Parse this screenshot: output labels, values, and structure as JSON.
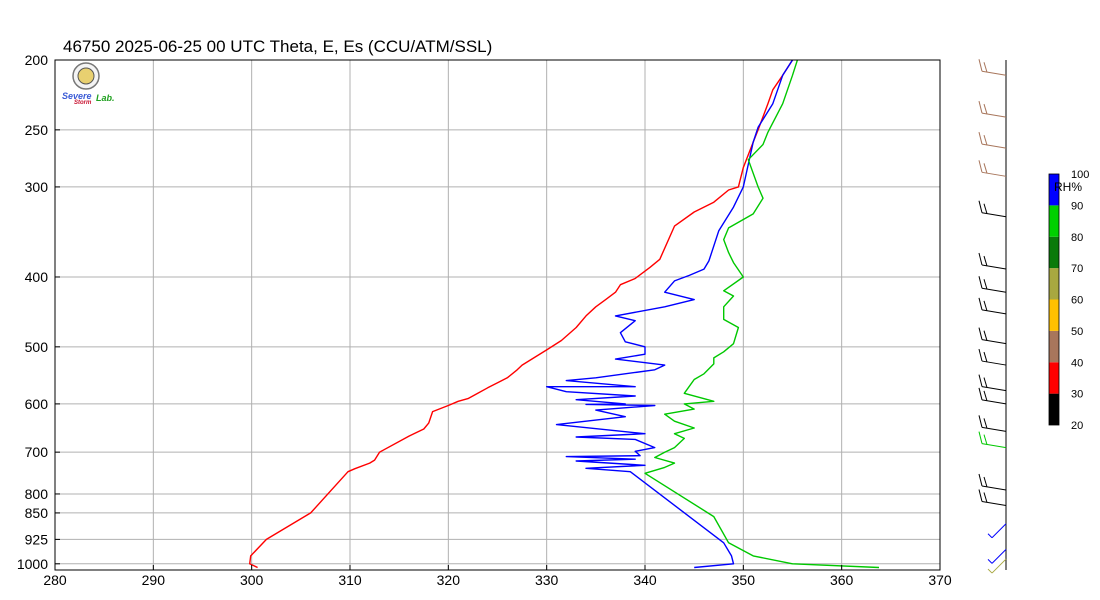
{
  "title": "46750  2025-06-25 00 UTC  Theta, E, Es (CCU/ATM/SSL)",
  "logo": {
    "name": "Severe Storm Lab",
    "word1": "Severe",
    "word2": "Storm",
    "word3": "Lab."
  },
  "chart_data": {
    "type": "line",
    "title": "46750  2025-06-25 00 UTC  Theta, E, Es (CCU/ATM/SSL)",
    "xlabel": "",
    "ylabel": "",
    "xlim": [
      280,
      370
    ],
    "ylim": [
      1020,
      200
    ],
    "yscale": "log",
    "grid": true,
    "x_ticks": [
      "280",
      "290",
      "300",
      "310",
      "320",
      "330",
      "340",
      "350",
      "360",
      "370"
    ],
    "y_ticks": [
      "200",
      "250",
      "300",
      "400",
      "500",
      "600",
      "700",
      "800",
      "850",
      "925",
      "1000"
    ],
    "x_tick_values": [
      280,
      290,
      300,
      310,
      320,
      330,
      340,
      350,
      360,
      370
    ],
    "y_tick_values": [
      200,
      250,
      300,
      400,
      500,
      600,
      700,
      800,
      850,
      925,
      1000
    ],
    "series": [
      {
        "color": "#ff0000",
        "points": [
          [
            300.6,
            1012
          ],
          [
            299.8,
            1000
          ],
          [
            299.9,
            975
          ],
          [
            301.5,
            925
          ],
          [
            306,
            850
          ],
          [
            309.8,
            745
          ],
          [
            310.5,
            738
          ],
          [
            312,
            725
          ],
          [
            312.5,
            718
          ],
          [
            313,
            700
          ],
          [
            316,
            665
          ],
          [
            316.5,
            660
          ],
          [
            317.5,
            650
          ],
          [
            318,
            638
          ],
          [
            318.4,
            615
          ],
          [
            320,
            603
          ],
          [
            321,
            595
          ],
          [
            322,
            590
          ],
          [
            323,
            580
          ],
          [
            324,
            570
          ],
          [
            326,
            552
          ],
          [
            327,
            538
          ],
          [
            327.5,
            530
          ],
          [
            330,
            505
          ],
          [
            331.5,
            490
          ],
          [
            333,
            470
          ],
          [
            334,
            453
          ],
          [
            335,
            440
          ],
          [
            336,
            430
          ],
          [
            337,
            420
          ],
          [
            337.5,
            410
          ],
          [
            339,
            402
          ],
          [
            340.5,
            388
          ],
          [
            341.5,
            378
          ],
          [
            343,
            340
          ],
          [
            345,
            325
          ],
          [
            347,
            315
          ],
          [
            348.5,
            303
          ],
          [
            349.5,
            300
          ],
          [
            350,
            282
          ],
          [
            351,
            260
          ],
          [
            351.5,
            250
          ],
          [
            352.5,
            230
          ],
          [
            353,
            220
          ],
          [
            354,
            210
          ],
          [
            355,
            200
          ]
        ]
      },
      {
        "color": "#0000ff",
        "points": [
          [
            345,
            1012
          ],
          [
            349,
            1000
          ],
          [
            348.8,
            975
          ],
          [
            348,
            935
          ],
          [
            338.5,
            745
          ],
          [
            334,
            737
          ],
          [
            340,
            730
          ],
          [
            333,
            720
          ],
          [
            339,
            716
          ],
          [
            332,
            710
          ],
          [
            339.5,
            708
          ],
          [
            339,
            698
          ],
          [
            341,
            690
          ],
          [
            339,
            672
          ],
          [
            333,
            667
          ],
          [
            340,
            660
          ],
          [
            331,
            641
          ],
          [
            338,
            625
          ],
          [
            335,
            612
          ],
          [
            341,
            603
          ],
          [
            334,
            601
          ],
          [
            338,
            600
          ],
          [
            333,
            592
          ],
          [
            339,
            585
          ],
          [
            332,
            577
          ],
          [
            330,
            568
          ],
          [
            339,
            568
          ],
          [
            332,
            557
          ],
          [
            335,
            552
          ],
          [
            341,
            538
          ],
          [
            342,
            530
          ],
          [
            337,
            520
          ],
          [
            340,
            512
          ],
          [
            340,
            500
          ],
          [
            338,
            492
          ],
          [
            337.5,
            478
          ],
          [
            339,
            460
          ],
          [
            337,
            453
          ],
          [
            342,
            440
          ],
          [
            345,
            430
          ],
          [
            342,
            420
          ],
          [
            343,
            405
          ],
          [
            344.5,
            398
          ],
          [
            346,
            390
          ],
          [
            346.5,
            380
          ],
          [
            347.5,
            345
          ],
          [
            349,
            320
          ],
          [
            350,
            300
          ],
          [
            351,
            260
          ],
          [
            351.5,
            248
          ],
          [
            353,
            230
          ],
          [
            354,
            210
          ],
          [
            355,
            200
          ]
        ]
      },
      {
        "color": "#00c800",
        "points": [
          [
            363.8,
            1012
          ],
          [
            355,
            1000
          ],
          [
            351,
            975
          ],
          [
            348.5,
            935
          ],
          [
            347,
            860
          ],
          [
            340,
            749
          ],
          [
            342,
            735
          ],
          [
            343,
            725
          ],
          [
            341,
            712
          ],
          [
            342,
            700
          ],
          [
            343,
            690
          ],
          [
            344,
            670
          ],
          [
            343,
            660
          ],
          [
            345,
            648
          ],
          [
            343,
            634
          ],
          [
            342,
            620
          ],
          [
            345,
            610
          ],
          [
            344,
            600
          ],
          [
            347,
            595
          ],
          [
            344,
            580
          ],
          [
            345,
            555
          ],
          [
            346,
            545
          ],
          [
            347,
            528
          ],
          [
            347,
            518
          ],
          [
            348,
            508
          ],
          [
            349,
            495
          ],
          [
            349.5,
            470
          ],
          [
            348,
            458
          ],
          [
            348,
            440
          ],
          [
            349,
            425
          ],
          [
            348,
            418
          ],
          [
            350,
            400
          ],
          [
            349,
            382
          ],
          [
            348.5,
            370
          ],
          [
            348,
            355
          ],
          [
            348.5,
            342
          ],
          [
            351,
            327
          ],
          [
            352,
            311
          ],
          [
            351.5,
            300
          ],
          [
            350.5,
            275
          ],
          [
            352,
            262
          ],
          [
            352.5,
            252
          ],
          [
            354,
            230
          ],
          [
            355,
            210
          ],
          [
            355.5,
            200
          ]
        ]
      }
    ],
    "colorbar": {
      "label": "RH%",
      "ticks": [
        "20",
        "30",
        "40",
        "50",
        "60",
        "70",
        "80",
        "90",
        "100"
      ],
      "bins": [
        {
          "from": 20,
          "to": 30,
          "color": "#000000"
        },
        {
          "from": 30,
          "to": 40,
          "color": "#ff0000"
        },
        {
          "from": 40,
          "to": 50,
          "color": "#a8765c"
        },
        {
          "from": 50,
          "to": 60,
          "color": "#ffc000"
        },
        {
          "from": 60,
          "to": 70,
          "color": "#a8a840"
        },
        {
          "from": 70,
          "to": 80,
          "color": "#0a7a0a"
        },
        {
          "from": 80,
          "to": 90,
          "color": "#00d000"
        },
        {
          "from": 90,
          "to": 100,
          "color": "#0000ff"
        }
      ]
    },
    "wind_barbs": [
      {
        "p": 210,
        "color": "#a8765c"
      },
      {
        "p": 240,
        "color": "#a8765c"
      },
      {
        "p": 265,
        "color": "#a8765c"
      },
      {
        "p": 290,
        "color": "#a8765c"
      },
      {
        "p": 330,
        "color": "#000000"
      },
      {
        "p": 390,
        "color": "#000000"
      },
      {
        "p": 420,
        "color": "#000000"
      },
      {
        "p": 450,
        "color": "#000000"
      },
      {
        "p": 495,
        "color": "#000000"
      },
      {
        "p": 530,
        "color": "#000000"
      },
      {
        "p": 575,
        "color": "#000000"
      },
      {
        "p": 600,
        "color": "#000000"
      },
      {
        "p": 655,
        "color": "#000000"
      },
      {
        "p": 690,
        "color": "#00c800"
      },
      {
        "p": 790,
        "color": "#000000"
      },
      {
        "p": 830,
        "color": "#000000"
      },
      {
        "p": 880,
        "color": "#0000ff"
      },
      {
        "p": 955,
        "color": "#0000ff"
      },
      {
        "p": 985,
        "color": "#a8a840"
      }
    ]
  }
}
